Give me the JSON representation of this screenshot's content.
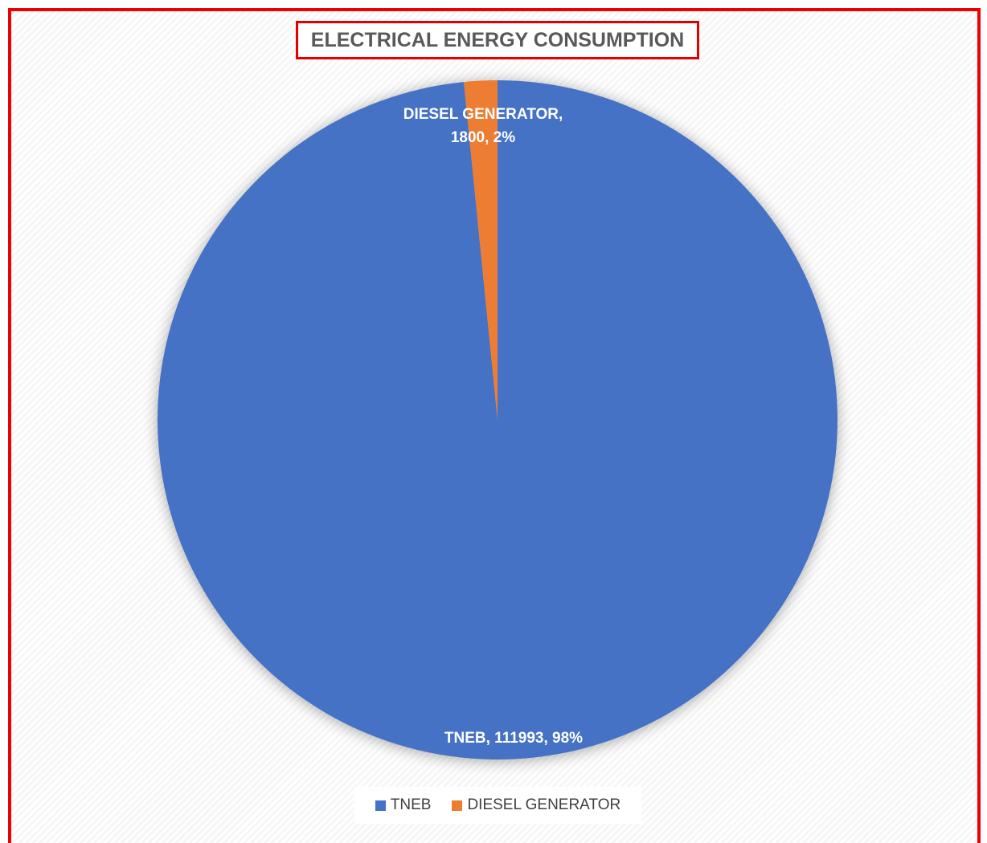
{
  "chart_data": {
    "type": "pie",
    "title": "ELECTRICAL ENERGY CONSUMPTION",
    "categories": [
      "TNEB",
      "DIESEL GENERATOR"
    ],
    "values": [
      111993,
      1800
    ],
    "percent_labels": [
      "98%",
      "2%"
    ],
    "colors": [
      "#4472c4",
      "#ed7d31"
    ],
    "legend_position": "bottom",
    "data_labels": [
      {
        "lines": [
          "TNEB, 111993, 98%"
        ]
      },
      {
        "lines": [
          "DIESEL GENERATOR,",
          "1800, 2%"
        ]
      }
    ]
  }
}
